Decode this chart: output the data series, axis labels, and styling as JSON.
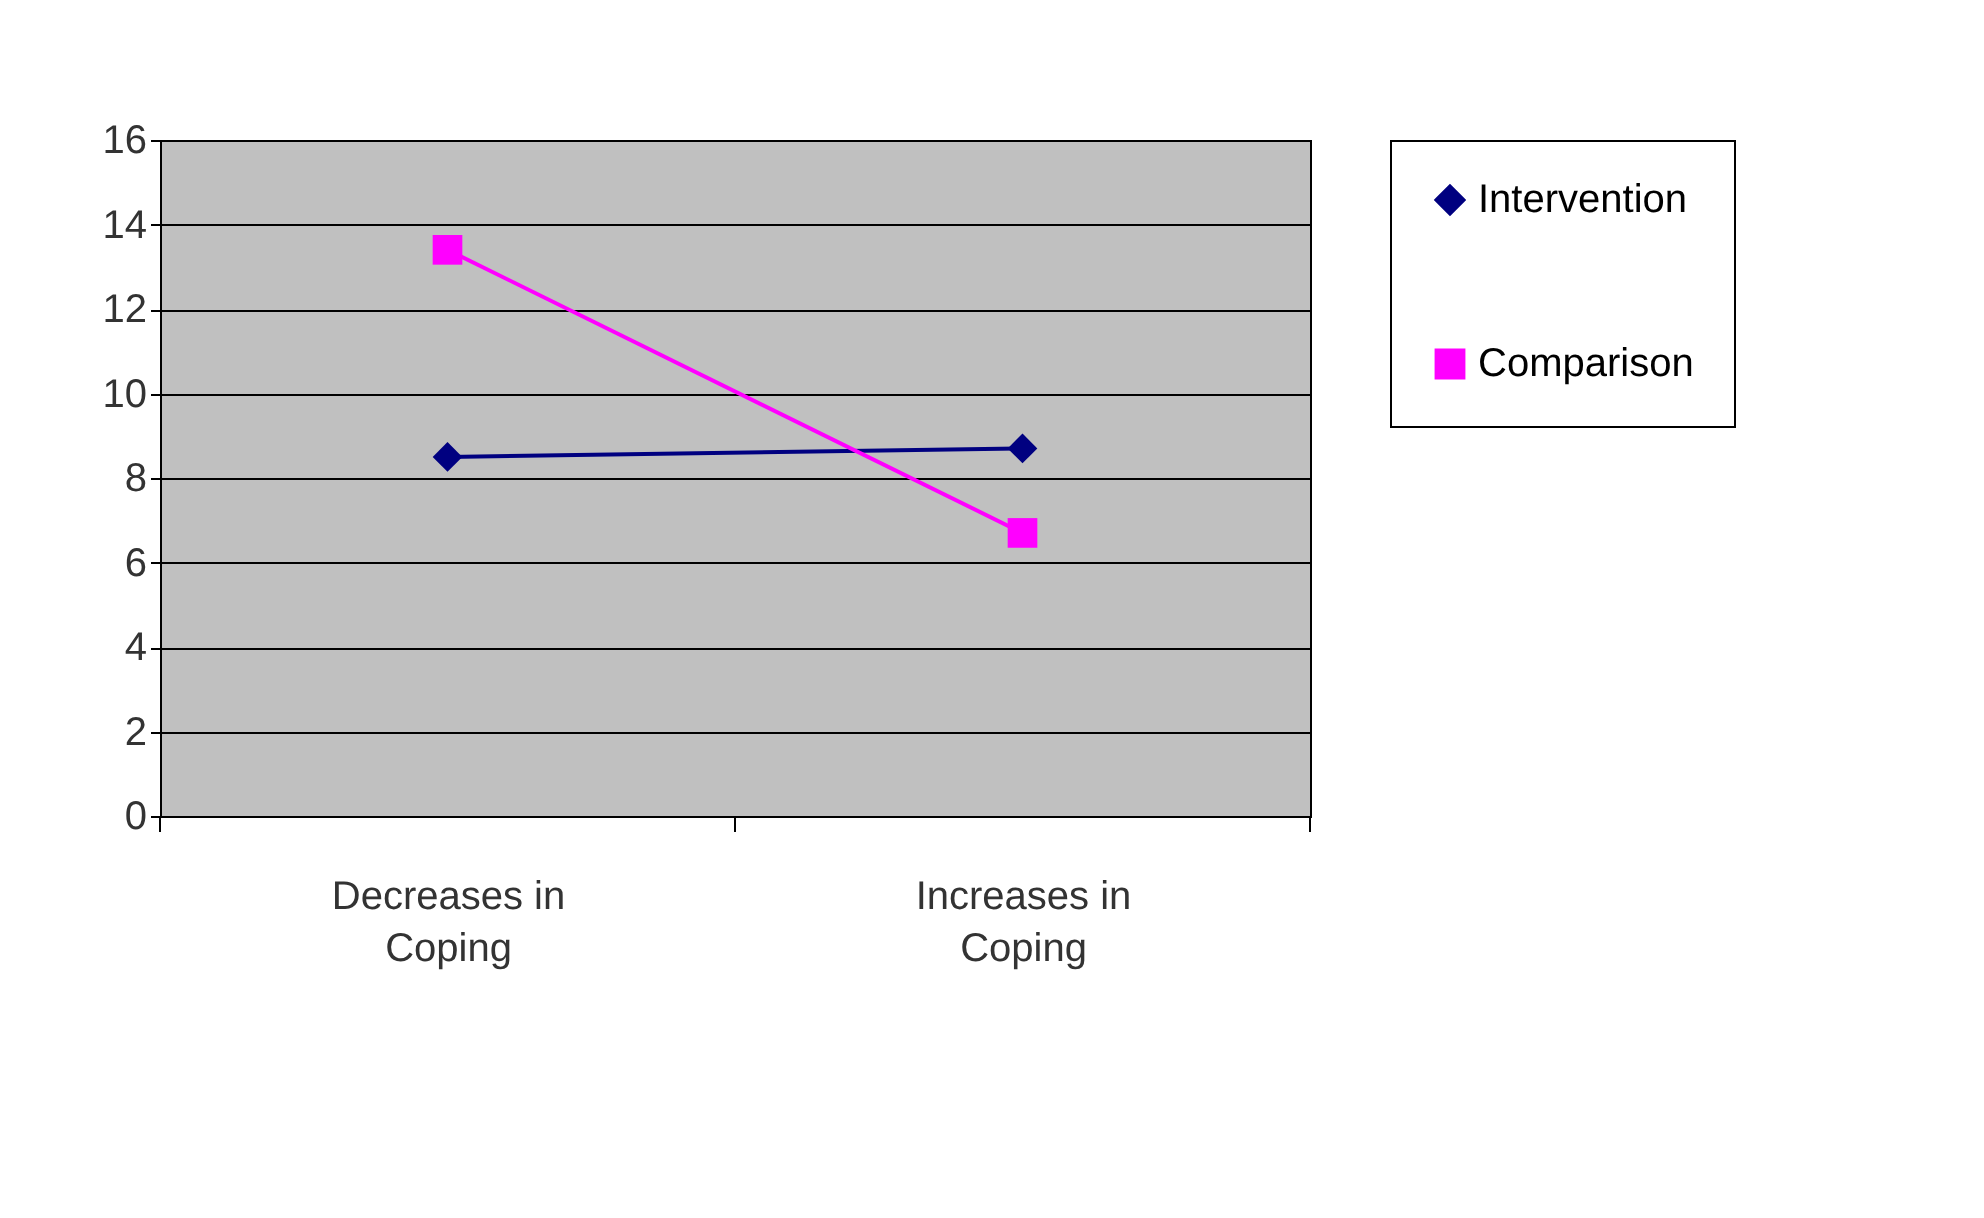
{
  "chart_data": {
    "type": "line",
    "categories": [
      "Decreases in Coping",
      "Increases in Coping"
    ],
    "series": [
      {
        "name": "Intervention",
        "color": "#000080",
        "marker": "diamond",
        "values": [
          8.5,
          8.7
        ]
      },
      {
        "name": "Comparison",
        "color": "#ff00ff",
        "marker": "square",
        "values": [
          13.4,
          6.7
        ]
      }
    ],
    "ylim": [
      0,
      16
    ],
    "yticks": [
      0,
      2,
      4,
      6,
      8,
      10,
      12,
      14,
      16
    ],
    "grid": "y",
    "legend": "right"
  }
}
